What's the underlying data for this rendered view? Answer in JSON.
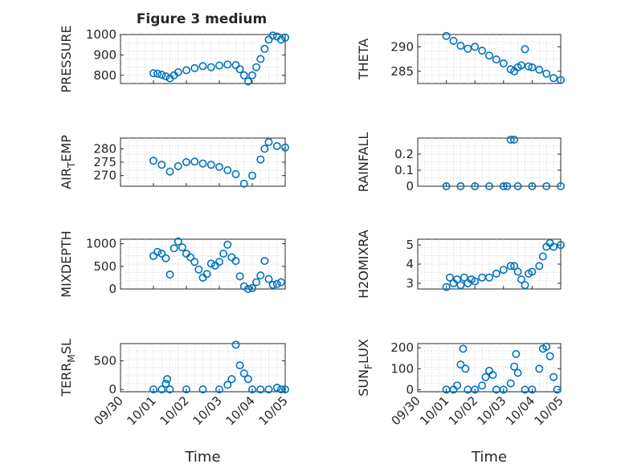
{
  "chart_data": [
    {
      "type": "scatter",
      "title": "Figure 3 medium",
      "ylabel": [
        "PRESSURE"
      ],
      "ylim": [
        760,
        1000
      ],
      "yticks": [
        "800",
        "900",
        "1000"
      ],
      "xlim": [
        "09/30",
        "10/05"
      ],
      "xticks": [],
      "xlabel": "",
      "grid": "minor dotted",
      "series": [
        {
          "points": [
            [
              "10/01 00:00",
              810
            ],
            [
              "10/01 03:00",
              808
            ],
            [
              "10/01 06:00",
              803
            ],
            [
              "10/01 09:00",
              795
            ],
            [
              "10/01 12:00",
              785
            ],
            [
              "10/01 15:00",
              800
            ],
            [
              "10/01 18:00",
              815
            ],
            [
              "10/02 00:00",
              825
            ],
            [
              "10/02 06:00",
              835
            ],
            [
              "10/02 12:00",
              845
            ],
            [
              "10/02 18:00",
              840
            ],
            [
              "10/03 00:00",
              848
            ],
            [
              "10/03 06:00",
              853
            ],
            [
              "10/03 12:00",
              850
            ],
            [
              "10/03 15:00",
              830
            ],
            [
              "10/03 18:00",
              800
            ],
            [
              "10/03 21:00",
              770
            ],
            [
              "10/04 00:00",
              800
            ],
            [
              "10/04 03:00",
              840
            ],
            [
              "10/04 06:00",
              880
            ],
            [
              "10/04 09:00",
              930
            ],
            [
              "10/04 12:00",
              975
            ],
            [
              "10/04 15:00",
              995
            ],
            [
              "10/04 18:00",
              990
            ],
            [
              "10/04 21:00",
              975
            ],
            [
              "10/05 00:00",
              985
            ]
          ]
        }
      ]
    },
    {
      "type": "scatter",
      "title": "",
      "ylabel": [
        "THETA"
      ],
      "ylim": [
        282.5,
        292.5
      ],
      "yticks": [
        "285",
        "290"
      ],
      "xlim": [
        "09/30",
        "10/05"
      ],
      "xticks": [],
      "xlabel": "",
      "grid": "minor dotted",
      "series": [
        {
          "points": [
            [
              "10/01 00:00",
              292.2
            ],
            [
              "10/01 06:00",
              291.2
            ],
            [
              "10/01 12:00",
              290.2
            ],
            [
              "10/01 18:00",
              289.6
            ],
            [
              "10/02 00:00",
              290.0
            ],
            [
              "10/02 06:00",
              289.2
            ],
            [
              "10/02 12:00",
              288.2
            ],
            [
              "10/02 18:00",
              287.4
            ],
            [
              "10/03 00:00",
              286.6
            ],
            [
              "10/03 06:00",
              285.4
            ],
            [
              "10/03 09:00",
              285.0
            ],
            [
              "10/03 12:00",
              285.8
            ],
            [
              "10/03 15:00",
              286.2
            ],
            [
              "10/03 18:00",
              289.5
            ],
            [
              "10/03 21:00",
              286.0
            ],
            [
              "10/04 00:00",
              285.8
            ],
            [
              "10/04 06:00",
              285.3
            ],
            [
              "10/04 12:00",
              284.5
            ],
            [
              "10/04 18:00",
              283.6
            ],
            [
              "10/05 00:00",
              283.2
            ]
          ]
        }
      ]
    },
    {
      "type": "scatter",
      "title": "",
      "ylabel": [
        "AIR",
        "T",
        "EMP"
      ],
      "ylim": [
        266,
        284
      ],
      "yticks": [
        "270",
        "275",
        "280"
      ],
      "xlim": [
        "09/30",
        "10/05"
      ],
      "xticks": [],
      "xlabel": "",
      "grid": "minor dotted",
      "series": [
        {
          "points": [
            [
              "10/01 00:00",
              275.5
            ],
            [
              "10/01 06:00",
              274.0
            ],
            [
              "10/01 12:00",
              271.5
            ],
            [
              "10/01 18:00",
              273.5
            ],
            [
              "10/02 00:00",
              275.0
            ],
            [
              "10/02 06:00",
              275.2
            ],
            [
              "10/02 12:00",
              274.5
            ],
            [
              "10/02 18:00",
              274.0
            ],
            [
              "10/03 00:00",
              273.2
            ],
            [
              "10/03 06:00",
              272.0
            ],
            [
              "10/03 12:00",
              270.5
            ],
            [
              "10/03 18:00",
              267.0
            ],
            [
              "10/04 00:00",
              270.0
            ],
            [
              "10/04 06:00",
              276.0
            ],
            [
              "10/04 09:00",
              280.0
            ],
            [
              "10/04 12:00",
              282.5
            ],
            [
              "10/04 18:00",
              281.0
            ],
            [
              "10/05 00:00",
              280.5
            ]
          ]
        }
      ]
    },
    {
      "type": "scatter",
      "title": "",
      "ylabel": [
        "RAINFALL"
      ],
      "ylim": [
        0,
        0.3
      ],
      "yticks": [
        "0",
        "0.1",
        "0.2"
      ],
      "xlim": [
        "09/30",
        "10/05"
      ],
      "xticks": [],
      "xlabel": "",
      "grid": "minor dotted",
      "series": [
        {
          "points": [
            [
              "10/01 00:00",
              0
            ],
            [
              "10/01 12:00",
              0
            ],
            [
              "10/02 00:00",
              0
            ],
            [
              "10/02 12:00",
              0
            ],
            [
              "10/03 00:00",
              0
            ],
            [
              "10/03 03:00",
              0
            ],
            [
              "10/03 06:00",
              0.29
            ],
            [
              "10/03 09:00",
              0.29
            ],
            [
              "10/03 12:00",
              0
            ],
            [
              "10/04 00:00",
              0
            ],
            [
              "10/04 12:00",
              0
            ],
            [
              "10/05 00:00",
              0
            ]
          ]
        }
      ]
    },
    {
      "type": "scatter",
      "title": "",
      "ylabel": [
        "MIXDEPTH"
      ],
      "ylim": [
        0,
        1100
      ],
      "yticks": [
        "0",
        "500",
        "1000"
      ],
      "xlim": [
        "09/30",
        "10/05"
      ],
      "xticks": [],
      "xlabel": "",
      "grid": "minor dotted",
      "series": [
        {
          "points": [
            [
              "10/01 00:00",
              730
            ],
            [
              "10/01 03:00",
              820
            ],
            [
              "10/01 06:00",
              780
            ],
            [
              "10/01 09:00",
              680
            ],
            [
              "10/01 12:00",
              320
            ],
            [
              "10/01 15:00",
              900
            ],
            [
              "10/01 18:00",
              1050
            ],
            [
              "10/01 21:00",
              920
            ],
            [
              "10/02 00:00",
              780
            ],
            [
              "10/02 03:00",
              700
            ],
            [
              "10/02 06:00",
              600
            ],
            [
              "10/02 09:00",
              430
            ],
            [
              "10/02 12:00",
              250
            ],
            [
              "10/02 15:00",
              330
            ],
            [
              "10/02 18:00",
              560
            ],
            [
              "10/02 21:00",
              520
            ],
            [
              "10/03 00:00",
              600
            ],
            [
              "10/03 03:00",
              780
            ],
            [
              "10/03 06:00",
              980
            ],
            [
              "10/03 09:00",
              700
            ],
            [
              "10/03 12:00",
              620
            ],
            [
              "10/03 15:00",
              280
            ],
            [
              "10/03 18:00",
              60
            ],
            [
              "10/03 21:00",
              0
            ],
            [
              "10/04 00:00",
              20
            ],
            [
              "10/04 03:00",
              150
            ],
            [
              "10/04 06:00",
              300
            ],
            [
              "10/04 09:00",
              620
            ],
            [
              "10/04 12:00",
              220
            ],
            [
              "10/04 15:00",
              90
            ],
            [
              "10/04 18:00",
              110
            ],
            [
              "10/04 21:00",
              150
            ]
          ]
        }
      ]
    },
    {
      "type": "scatter",
      "title": "",
      "ylabel": [
        "H2OMIXRA"
      ],
      "ylim": [
        2.7,
        5.3
      ],
      "yticks": [
        "3",
        "4",
        "5"
      ],
      "xlim": [
        "09/30",
        "10/05"
      ],
      "xticks": [],
      "xlabel": "",
      "grid": "minor dotted",
      "series": [
        {
          "points": [
            [
              "10/01 00:00",
              2.8
            ],
            [
              "10/01 03:00",
              3.3
            ],
            [
              "10/01 06:00",
              3.0
            ],
            [
              "10/01 09:00",
              3.2
            ],
            [
              "10/01 12:00",
              2.9
            ],
            [
              "10/01 15:00",
              3.3
            ],
            [
              "10/01 18:00",
              3.0
            ],
            [
              "10/01 21:00",
              3.2
            ],
            [
              "10/02 00:00",
              3.1
            ],
            [
              "10/02 06:00",
              3.3
            ],
            [
              "10/02 12:00",
              3.3
            ],
            [
              "10/02 18:00",
              3.5
            ],
            [
              "10/03 00:00",
              3.7
            ],
            [
              "10/03 06:00",
              3.9
            ],
            [
              "10/03 09:00",
              3.9
            ],
            [
              "10/03 12:00",
              3.6
            ],
            [
              "10/03 15:00",
              3.2
            ],
            [
              "10/03 18:00",
              2.9
            ],
            [
              "10/03 21:00",
              3.5
            ],
            [
              "10/04 00:00",
              3.6
            ],
            [
              "10/04 06:00",
              3.9
            ],
            [
              "10/04 09:00",
              4.4
            ],
            [
              "10/04 12:00",
              4.9
            ],
            [
              "10/04 15:00",
              5.1
            ],
            [
              "10/04 18:00",
              4.9
            ],
            [
              "10/05 00:00",
              5.0
            ]
          ]
        }
      ]
    },
    {
      "type": "scatter",
      "title": "",
      "ylabel": [
        "TERR",
        "M",
        "SL"
      ],
      "ylim": [
        -40,
        800
      ],
      "yticks": [
        "0",
        "500"
      ],
      "xlim": [
        "09/30",
        "10/05"
      ],
      "xticks": [
        "09/30",
        "10/01",
        "10/02",
        "10/03",
        "10/04",
        "10/05"
      ],
      "xlabel": "Time",
      "grid": "minor dotted",
      "series": [
        {
          "points": [
            [
              "10/01 00:00",
              0
            ],
            [
              "10/01 06:00",
              0
            ],
            [
              "10/01 09:00",
              100
            ],
            [
              "10/01 10:00",
              180
            ],
            [
              "10/01 12:00",
              0
            ],
            [
              "10/02 00:00",
              0
            ],
            [
              "10/02 12:00",
              0
            ],
            [
              "10/03 00:00",
              0
            ],
            [
              "10/03 06:00",
              80
            ],
            [
              "10/03 09:00",
              180
            ],
            [
              "10/03 12:00",
              780
            ],
            [
              "10/03 15:00",
              420
            ],
            [
              "10/03 18:00",
              280
            ],
            [
              "10/03 21:00",
              180
            ],
            [
              "10/04 00:00",
              0
            ],
            [
              "10/04 06:00",
              0
            ],
            [
              "10/04 12:00",
              0
            ],
            [
              "10/04 18:00",
              30
            ],
            [
              "10/04 21:00",
              0
            ],
            [
              "10/05 00:00",
              0
            ]
          ]
        }
      ]
    },
    {
      "type": "scatter",
      "title": "",
      "ylabel": [
        "SUN",
        "F",
        "LUX"
      ],
      "ylim": [
        -10,
        220
      ],
      "yticks": [
        "0",
        "100",
        "200"
      ],
      "xlim": [
        "09/30",
        "10/05"
      ],
      "xticks": [
        "09/30",
        "10/01",
        "10/02",
        "10/03",
        "10/04",
        "10/05"
      ],
      "xlabel": "Time",
      "grid": "minor dotted",
      "series": [
        {
          "points": [
            [
              "10/01 00:00",
              0
            ],
            [
              "10/01 06:00",
              0
            ],
            [
              "10/01 09:00",
              20
            ],
            [
              "10/01 12:00",
              120
            ],
            [
              "10/01 14:00",
              195
            ],
            [
              "10/01 16:00",
              100
            ],
            [
              "10/01 18:00",
              0
            ],
            [
              "10/02 00:00",
              0
            ],
            [
              "10/02 06:00",
              20
            ],
            [
              "10/02 09:00",
              60
            ],
            [
              "10/02 12:00",
              90
            ],
            [
              "10/02 15:00",
              70
            ],
            [
              "10/02 18:00",
              0
            ],
            [
              "10/03 00:00",
              0
            ],
            [
              "10/03 06:00",
              30
            ],
            [
              "10/03 09:00",
              110
            ],
            [
              "10/03 10:30",
              170
            ],
            [
              "10/03 12:00",
              80
            ],
            [
              "10/03 18:00",
              0
            ],
            [
              "10/04 00:00",
              0
            ],
            [
              "10/04 06:00",
              100
            ],
            [
              "10/04 09:00",
              195
            ],
            [
              "10/04 12:00",
              205
            ],
            [
              "10/04 15:00",
              160
            ],
            [
              "10/04 18:00",
              60
            ],
            [
              "10/04 21:00",
              0
            ]
          ]
        }
      ]
    }
  ]
}
